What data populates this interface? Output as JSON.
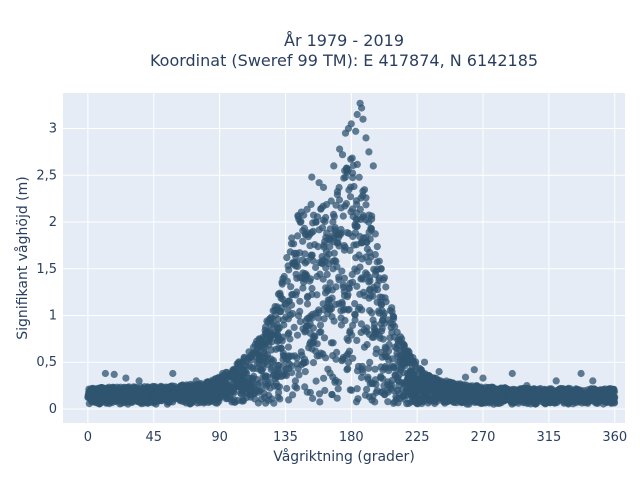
{
  "chart_data": {
    "type": "scatter",
    "title_line1": "År 1979 - 2019",
    "title_line2": "Koordinat (Sweref 99 TM): E 417874, N 6142185",
    "xlabel": "Vågriktning (grader)",
    "ylabel": "Signifikant våghöjd (m)",
    "xlim": [
      -17,
      367
    ],
    "ylim": [
      -0.15,
      3.38
    ],
    "x_ticks": [
      0,
      45,
      90,
      135,
      180,
      225,
      270,
      315,
      360
    ],
    "x_tick_labels": [
      "0",
      "45",
      "90",
      "135",
      "180",
      "225",
      "270",
      "315",
      "360"
    ],
    "y_ticks": [
      0,
      0.5,
      1,
      1.5,
      2,
      2.5,
      3
    ],
    "y_tick_labels": [
      "0",
      "0,5",
      "1",
      "1,5",
      "2",
      "2,5",
      "3"
    ],
    "grid": true,
    "legend": "none",
    "marker_color": "#2f5470",
    "plot_background": "#e5ecf6",
    "grid_color": "#ffffff",
    "envelope": {
      "x": [
        0,
        20,
        40,
        60,
        80,
        90,
        100,
        110,
        120,
        130,
        135,
        140,
        145,
        150,
        155,
        160,
        165,
        170,
        175,
        180,
        185,
        190,
        195,
        200,
        205,
        210,
        215,
        220,
        225,
        230,
        240,
        260,
        280,
        300,
        320,
        340,
        360
      ],
      "y_max": [
        0.22,
        0.24,
        0.24,
        0.25,
        0.28,
        0.35,
        0.45,
        0.62,
        0.85,
        1.25,
        1.6,
        1.95,
        2.15,
        2.3,
        2.35,
        2.25,
        2.25,
        2.4,
        2.55,
        2.7,
        2.65,
        2.3,
        2.05,
        1.6,
        1.25,
        0.95,
        0.75,
        0.6,
        0.48,
        0.38,
        0.32,
        0.26,
        0.23,
        0.22,
        0.22,
        0.22,
        0.22
      ],
      "y_min": 0.05
    },
    "outliers": [
      {
        "x": 12,
        "y": 0.38
      },
      {
        "x": 18,
        "y": 0.37
      },
      {
        "x": 26,
        "y": 0.33
      },
      {
        "x": 35,
        "y": 0.3
      },
      {
        "x": 58,
        "y": 0.38
      },
      {
        "x": 74,
        "y": 0.3
      },
      {
        "x": 92,
        "y": 0.38
      },
      {
        "x": 108,
        "y": 0.5
      },
      {
        "x": 117,
        "y": 0.75
      },
      {
        "x": 125,
        "y": 0.95
      },
      {
        "x": 153,
        "y": 2.48
      },
      {
        "x": 158,
        "y": 2.42
      },
      {
        "x": 161,
        "y": 2.37
      },
      {
        "x": 168,
        "y": 2.6
      },
      {
        "x": 172,
        "y": 2.78
      },
      {
        "x": 174,
        "y": 2.72
      },
      {
        "x": 176,
        "y": 2.95
      },
      {
        "x": 178,
        "y": 3.0
      },
      {
        "x": 180,
        "y": 3.05
      },
      {
        "x": 183,
        "y": 2.97
      },
      {
        "x": 184,
        "y": 3.15
      },
      {
        "x": 186,
        "y": 3.27
      },
      {
        "x": 187,
        "y": 3.22
      },
      {
        "x": 188,
        "y": 3.1
      },
      {
        "x": 190,
        "y": 2.9
      },
      {
        "x": 192,
        "y": 2.75
      },
      {
        "x": 195,
        "y": 2.6
      },
      {
        "x": 230,
        "y": 0.5
      },
      {
        "x": 240,
        "y": 0.4
      },
      {
        "x": 258,
        "y": 0.34
      },
      {
        "x": 264,
        "y": 0.42
      },
      {
        "x": 270,
        "y": 0.33
      },
      {
        "x": 290,
        "y": 0.38
      },
      {
        "x": 300,
        "y": 0.25
      },
      {
        "x": 320,
        "y": 0.3
      },
      {
        "x": 337,
        "y": 0.38
      },
      {
        "x": 345,
        "y": 0.3
      }
    ]
  }
}
